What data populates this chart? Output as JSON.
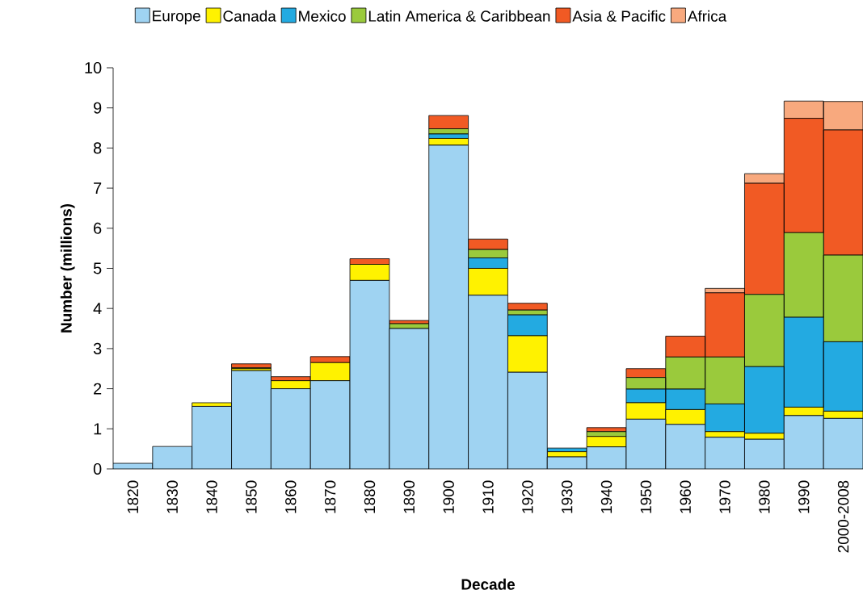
{
  "chart_data": {
    "type": "bar",
    "stacked": true,
    "xlabel": "Decade",
    "ylabel": "Number (millions)",
    "categories": [
      "1820",
      "1830",
      "1840",
      "1850",
      "1860",
      "1870",
      "1880",
      "1890",
      "1900",
      "1910",
      "1920",
      "1930",
      "1940",
      "1950",
      "1960",
      "1970",
      "1980",
      "1990",
      "2000-2008"
    ],
    "series": [
      {
        "name": "Europe",
        "color": "#9fd3f2",
        "values": [
          0.14,
          0.56,
          1.56,
          2.45,
          2.0,
          2.2,
          4.7,
          3.5,
          8.07,
          4.33,
          2.41,
          0.3,
          0.55,
          1.24,
          1.11,
          0.79,
          0.74,
          1.33,
          1.26
        ]
      },
      {
        "name": "Canada",
        "color": "#fff200",
        "values": [
          0,
          0,
          0.09,
          0.05,
          0.2,
          0.45,
          0.4,
          0,
          0.17,
          0.67,
          0.91,
          0.13,
          0.26,
          0.41,
          0.37,
          0.14,
          0.15,
          0.21,
          0.18
        ]
      },
      {
        "name": "Mexico",
        "color": "#23aae1",
        "values": [
          0,
          0,
          0,
          0,
          0,
          0,
          0,
          0,
          0.11,
          0.26,
          0.52,
          0.09,
          0,
          0.34,
          0.51,
          0.69,
          1.66,
          2.24,
          1.73
        ]
      },
      {
        "name": "Latin America & Caribbean",
        "color": "#9aca3c",
        "values": [
          0,
          0,
          0,
          0.02,
          0,
          0,
          0,
          0.12,
          0.13,
          0.21,
          0.12,
          0,
          0.12,
          0.29,
          0.8,
          1.17,
          1.8,
          2.11,
          2.16
        ]
      },
      {
        "name": "Asia & Pacific",
        "color": "#f15a24",
        "values": [
          0,
          0,
          0,
          0.1,
          0.1,
          0.15,
          0.14,
          0.08,
          0.33,
          0.26,
          0.17,
          0,
          0.1,
          0.22,
          0.52,
          1.6,
          2.77,
          2.85,
          3.12
        ]
      },
      {
        "name": "Africa",
        "color": "#f8a97e",
        "values": [
          0,
          0,
          0,
          0,
          0,
          0,
          0,
          0,
          0,
          0,
          0,
          0,
          0,
          0,
          0,
          0.11,
          0.24,
          0.43,
          0.71
        ]
      }
    ],
    "ylim": [
      0,
      10
    ],
    "yticks": [
      0,
      1,
      2,
      3,
      4,
      5,
      6,
      7,
      8,
      9,
      10
    ],
    "legend": "top"
  }
}
